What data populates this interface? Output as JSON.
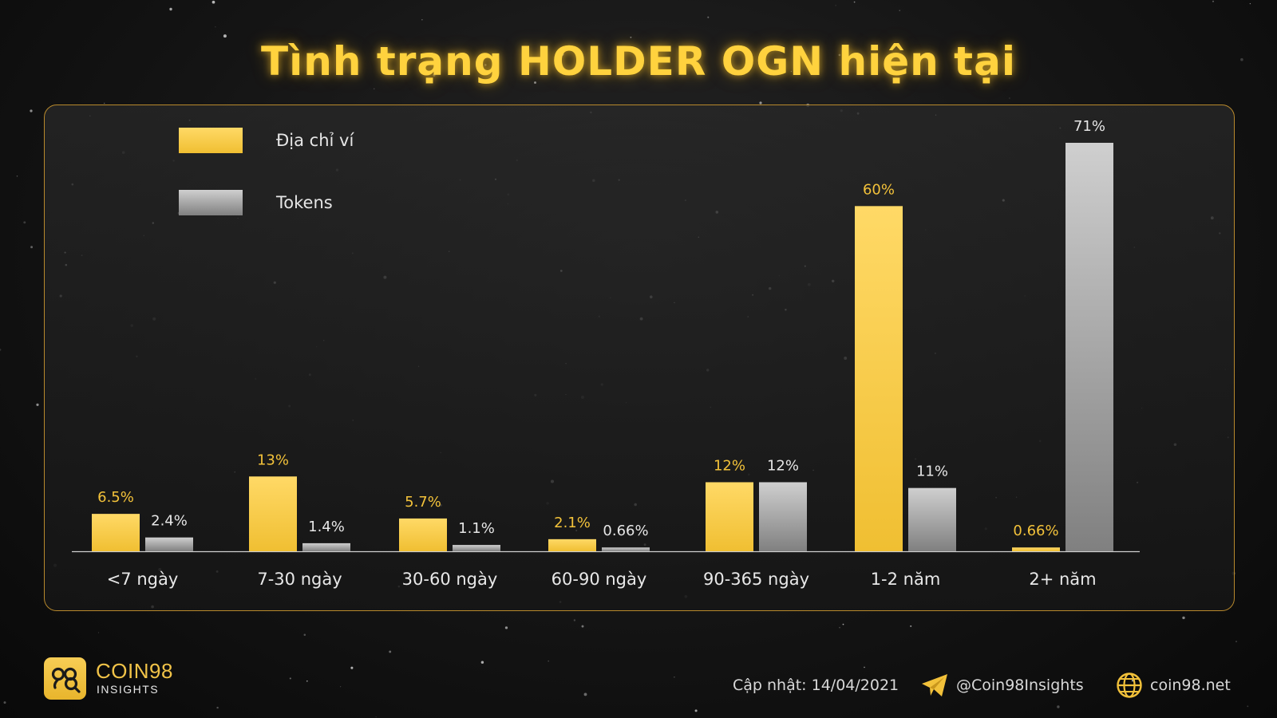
{
  "header": {
    "title": "Tình trạng HOLDER OGN hiện tại"
  },
  "chart_data": {
    "type": "bar",
    "title": "Tình trạng HOLDER OGN hiện tại",
    "categories": [
      "<7 ngày",
      "7-30 ngày",
      "30-60 ngày",
      "60-90 ngày",
      "90-365 ngày",
      "1-2 năm",
      "2+ năm"
    ],
    "series": [
      {
        "name": "Địa chỉ ví",
        "color": "#f6c940",
        "values": [
          6.5,
          13,
          5.7,
          2.1,
          12,
          60,
          0.66
        ],
        "labels": [
          "6.5%",
          "13%",
          "5.7%",
          "2.1%",
          "12%",
          "60%",
          "0.66%"
        ]
      },
      {
        "name": "Tokens",
        "color": "#a9a9a9",
        "values": [
          2.4,
          1.4,
          1.1,
          0.66,
          12,
          11,
          71
        ],
        "labels": [
          "2.4%",
          "1.4%",
          "1.1%",
          "0.66%",
          "12%",
          "11%",
          "71%"
        ]
      }
    ],
    "xlabel": "",
    "ylabel": "",
    "ylim": [
      0,
      71
    ],
    "grid": false,
    "legend_position": "top-left",
    "label_colors": {
      "Địa chỉ ví": "#f3c23a",
      "Tokens": "#e6e6e6"
    }
  },
  "footer": {
    "brand_name": "COIN98",
    "brand_sub": "INSIGHTS",
    "updated": "Cập nhật: 14/04/2021",
    "telegram": "@Coin98Insights",
    "website": "coin98.net",
    "icons": [
      "coin98-logo-icon",
      "telegram-icon",
      "globe-icon"
    ]
  }
}
